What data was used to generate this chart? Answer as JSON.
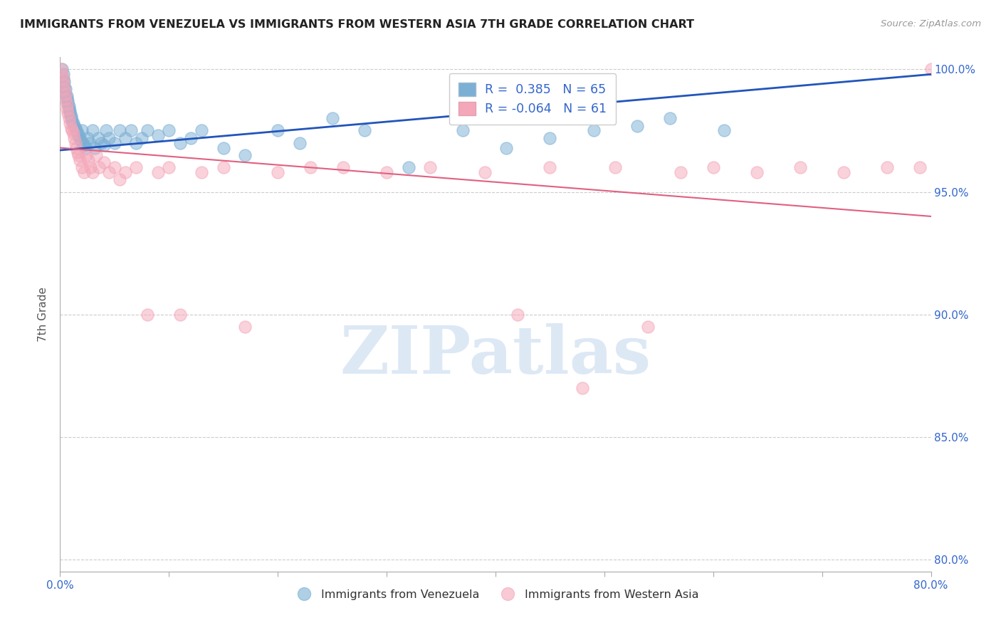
{
  "title": "IMMIGRANTS FROM VENEZUELA VS IMMIGRANTS FROM WESTERN ASIA 7TH GRADE CORRELATION CHART",
  "source": "Source: ZipAtlas.com",
  "ylabel": "7th Grade",
  "xlim": [
    0.0,
    0.8
  ],
  "ylim": [
    0.795,
    1.005
  ],
  "xtick_positions": [
    0.0,
    0.1,
    0.2,
    0.3,
    0.4,
    0.5,
    0.6,
    0.7,
    0.8
  ],
  "xtick_labels": [
    "0.0%",
    "",
    "",
    "",
    "",
    "",
    "",
    "",
    "80.0%"
  ],
  "ytick_positions": [
    0.8,
    0.85,
    0.9,
    0.95,
    1.0
  ],
  "ytick_labels": [
    "80.0%",
    "85.0%",
    "90.0%",
    "95.0%",
    "100.0%"
  ],
  "R_blue": 0.385,
  "N_blue": 65,
  "R_pink": -0.064,
  "N_pink": 61,
  "blue_color": "#7BAFD4",
  "pink_color": "#F4A7B9",
  "trend_blue_color": "#2255BB",
  "trend_pink_color": "#E06080",
  "legend_label_blue": "Immigrants from Venezuela",
  "legend_label_pink": "Immigrants from Western Asia",
  "watermark_text": "ZIPatlas",
  "trend_blue_x0": 0.0,
  "trend_blue_y0": 0.967,
  "trend_blue_x1": 0.8,
  "trend_blue_y1": 0.998,
  "trend_pink_x0": 0.0,
  "trend_pink_y0": 0.968,
  "trend_pink_x1": 0.8,
  "trend_pink_y1": 0.94,
  "blue_x": [
    0.002,
    0.003,
    0.003,
    0.004,
    0.004,
    0.005,
    0.005,
    0.006,
    0.006,
    0.007,
    0.007,
    0.008,
    0.008,
    0.009,
    0.009,
    0.01,
    0.01,
    0.011,
    0.012,
    0.013,
    0.014,
    0.015,
    0.016,
    0.017,
    0.018,
    0.019,
    0.02,
    0.021,
    0.022,
    0.023,
    0.025,
    0.027,
    0.03,
    0.032,
    0.035,
    0.038,
    0.04,
    0.042,
    0.045,
    0.05,
    0.055,
    0.06,
    0.065,
    0.07,
    0.075,
    0.08,
    0.09,
    0.1,
    0.11,
    0.12,
    0.13,
    0.15,
    0.17,
    0.2,
    0.22,
    0.25,
    0.28,
    0.32,
    0.37,
    0.41,
    0.45,
    0.49,
    0.53,
    0.56,
    0.61
  ],
  "blue_y": [
    1.0,
    0.998,
    0.996,
    0.995,
    0.993,
    0.992,
    0.99,
    0.989,
    0.988,
    0.987,
    0.986,
    0.985,
    0.984,
    0.983,
    0.982,
    0.981,
    0.98,
    0.979,
    0.978,
    0.977,
    0.976,
    0.975,
    0.974,
    0.973,
    0.972,
    0.971,
    0.975,
    0.97,
    0.969,
    0.968,
    0.972,
    0.97,
    0.975,
    0.968,
    0.972,
    0.97,
    0.969,
    0.975,
    0.972,
    0.97,
    0.975,
    0.972,
    0.975,
    0.97,
    0.972,
    0.975,
    0.973,
    0.975,
    0.97,
    0.972,
    0.975,
    0.968,
    0.965,
    0.975,
    0.97,
    0.98,
    0.975,
    0.96,
    0.975,
    0.968,
    0.972,
    0.975,
    0.977,
    0.98,
    0.975
  ],
  "pink_x": [
    0.001,
    0.002,
    0.003,
    0.003,
    0.004,
    0.005,
    0.005,
    0.006,
    0.006,
    0.007,
    0.008,
    0.009,
    0.01,
    0.011,
    0.012,
    0.013,
    0.014,
    0.015,
    0.016,
    0.017,
    0.018,
    0.02,
    0.022,
    0.024,
    0.026,
    0.028,
    0.03,
    0.033,
    0.036,
    0.04,
    0.045,
    0.05,
    0.055,
    0.06,
    0.07,
    0.08,
    0.09,
    0.1,
    0.11,
    0.13,
    0.15,
    0.17,
    0.2,
    0.23,
    0.26,
    0.3,
    0.34,
    0.39,
    0.42,
    0.45,
    0.48,
    0.51,
    0.54,
    0.57,
    0.6,
    0.64,
    0.68,
    0.72,
    0.76,
    0.79,
    0.8
  ],
  "pink_y": [
    1.0,
    0.998,
    0.996,
    0.994,
    0.992,
    0.99,
    0.988,
    0.986,
    0.984,
    0.982,
    0.98,
    0.978,
    0.976,
    0.975,
    0.974,
    0.972,
    0.97,
    0.968,
    0.966,
    0.965,
    0.963,
    0.96,
    0.958,
    0.965,
    0.963,
    0.96,
    0.958,
    0.965,
    0.96,
    0.962,
    0.958,
    0.96,
    0.955,
    0.958,
    0.96,
    0.9,
    0.958,
    0.96,
    0.9,
    0.958,
    0.96,
    0.895,
    0.958,
    0.96,
    0.96,
    0.958,
    0.96,
    0.958,
    0.9,
    0.96,
    0.87,
    0.96,
    0.895,
    0.958,
    0.96,
    0.958,
    0.96,
    0.958,
    0.96,
    0.96,
    1.0
  ]
}
